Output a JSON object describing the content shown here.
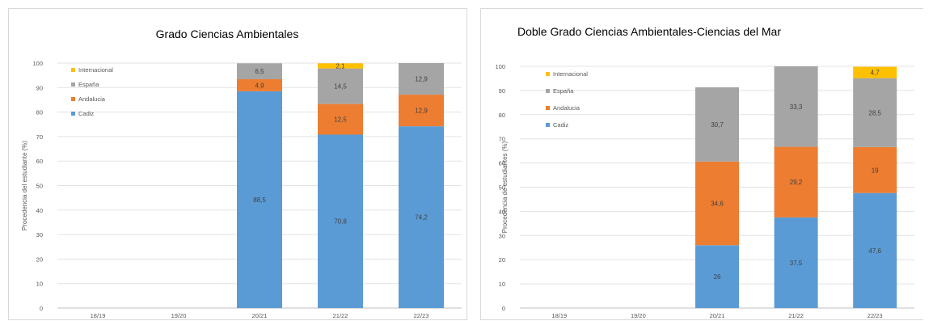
{
  "chart_data": [
    {
      "type": "bar",
      "stacked": true,
      "title": "Grado Ciencias Ambientales",
      "xlabel": "",
      "ylabel": "Procedencia del estudiante (%)",
      "ylim": [
        0,
        100
      ],
      "yticks": [
        "0",
        "10",
        "20",
        "30",
        "40",
        "50",
        "60",
        "70",
        "80",
        "90",
        "100"
      ],
      "categories": [
        "18/19",
        "19/20",
        "20/21",
        "21/22",
        "22/23"
      ],
      "legend_position": "top-left",
      "legend": [
        "Internacional",
        "España",
        "Andalucia",
        "Cadiz"
      ],
      "series": [
        {
          "name": "Cadiz",
          "color": "#5b9bd5",
          "values": [
            null,
            null,
            88.5,
            70.8,
            74.2
          ],
          "labels": [
            "",
            "",
            "88,5",
            "70,8",
            "74,2"
          ]
        },
        {
          "name": "Andalucia",
          "color": "#ed7d31",
          "values": [
            null,
            null,
            4.9,
            12.5,
            12.9
          ],
          "labels": [
            "",
            "",
            "4,9",
            "12,5",
            "12,9"
          ]
        },
        {
          "name": "España",
          "color": "#a5a5a5",
          "values": [
            null,
            null,
            6.5,
            14.5,
            12.9
          ],
          "labels": [
            "",
            "",
            "6,5",
            "14,5",
            "12,9"
          ]
        },
        {
          "name": "Internacional",
          "color": "#ffc000",
          "values": [
            null,
            null,
            null,
            2.1,
            null
          ],
          "labels": [
            "",
            "",
            "",
            "2,1",
            ""
          ]
        }
      ]
    },
    {
      "type": "bar",
      "stacked": true,
      "title": "Doble Grado Ciencias Ambientales-Ciencias del Mar",
      "xlabel": "",
      "ylabel": "Procedencia de estudiantes (%)",
      "ylim": [
        0,
        100
      ],
      "yticks": [
        "0",
        "10",
        "20",
        "30",
        "40",
        "50",
        "60",
        "70",
        "80",
        "90",
        "100"
      ],
      "categories": [
        "18/19",
        "19/20",
        "20/21",
        "21/22",
        "22/23"
      ],
      "legend_position": "top-left",
      "legend": [
        "Internacional",
        "España",
        "Andalucia",
        "Cadiz"
      ],
      "series": [
        {
          "name": "Cadiz",
          "color": "#5b9bd5",
          "values": [
            null,
            null,
            26,
            37.5,
            47.6
          ],
          "labels": [
            "",
            "",
            "26",
            "37,5",
            "47,6"
          ]
        },
        {
          "name": "Andalucia",
          "color": "#ed7d31",
          "values": [
            null,
            null,
            34.6,
            29.2,
            19
          ],
          "labels": [
            "",
            "",
            "34,6",
            "29,2",
            "19"
          ]
        },
        {
          "name": "España",
          "color": "#a5a5a5",
          "values": [
            null,
            null,
            30.7,
            33.3,
            28.5
          ],
          "labels": [
            "",
            "",
            "30,7",
            "33,3",
            "28,5"
          ]
        },
        {
          "name": "Internacional",
          "color": "#ffc000",
          "values": [
            null,
            null,
            null,
            null,
            4.7
          ],
          "labels": [
            "",
            "",
            "",
            "",
            "4,7"
          ]
        }
      ]
    }
  ]
}
